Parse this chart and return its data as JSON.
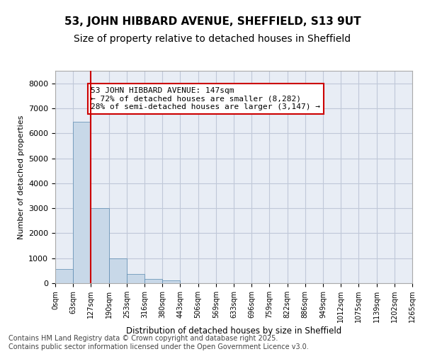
{
  "title_line1": "53, JOHN HIBBARD AVENUE, SHEFFIELD, S13 9UT",
  "title_line2": "Size of property relative to detached houses in Sheffield",
  "xlabel": "Distribution of detached houses by size in Sheffield",
  "ylabel": "Number of detached properties",
  "bar_color": "#c8d8e8",
  "bar_edge_color": "#5a8ab0",
  "grid_color": "#c0c8d8",
  "background_color": "#e8edf5",
  "bin_labels": [
    "0sqm",
    "63sqm",
    "127sqm",
    "190sqm",
    "253sqm",
    "316sqm",
    "380sqm",
    "443sqm",
    "506sqm",
    "569sqm",
    "633sqm",
    "696sqm",
    "759sqm",
    "822sqm",
    "886sqm",
    "949sqm",
    "1012sqm",
    "1075sqm",
    "1139sqm",
    "1202sqm",
    "1265sqm"
  ],
  "bar_values": [
    570,
    6450,
    3000,
    1000,
    370,
    160,
    100,
    0,
    0,
    0,
    0,
    0,
    0,
    0,
    0,
    0,
    0,
    0,
    0,
    0
  ],
  "ylim": [
    0,
    8500
  ],
  "yticks": [
    0,
    1000,
    2000,
    3000,
    4000,
    5000,
    6000,
    7000,
    8000
  ],
  "vline_x": 2,
  "vline_color": "#cc0000",
  "annotation_text": "53 JOHN HIBBARD AVENUE: 147sqm\n← 72% of detached houses are smaller (8,282)\n28% of semi-detached houses are larger (3,147) →",
  "annotation_box_color": "#cc0000",
  "footer_text": "Contains HM Land Registry data © Crown copyright and database right 2025.\nContains public sector information licensed under the Open Government Licence v3.0.",
  "title_fontsize": 11,
  "subtitle_fontsize": 10,
  "annotation_fontsize": 8,
  "footer_fontsize": 7
}
